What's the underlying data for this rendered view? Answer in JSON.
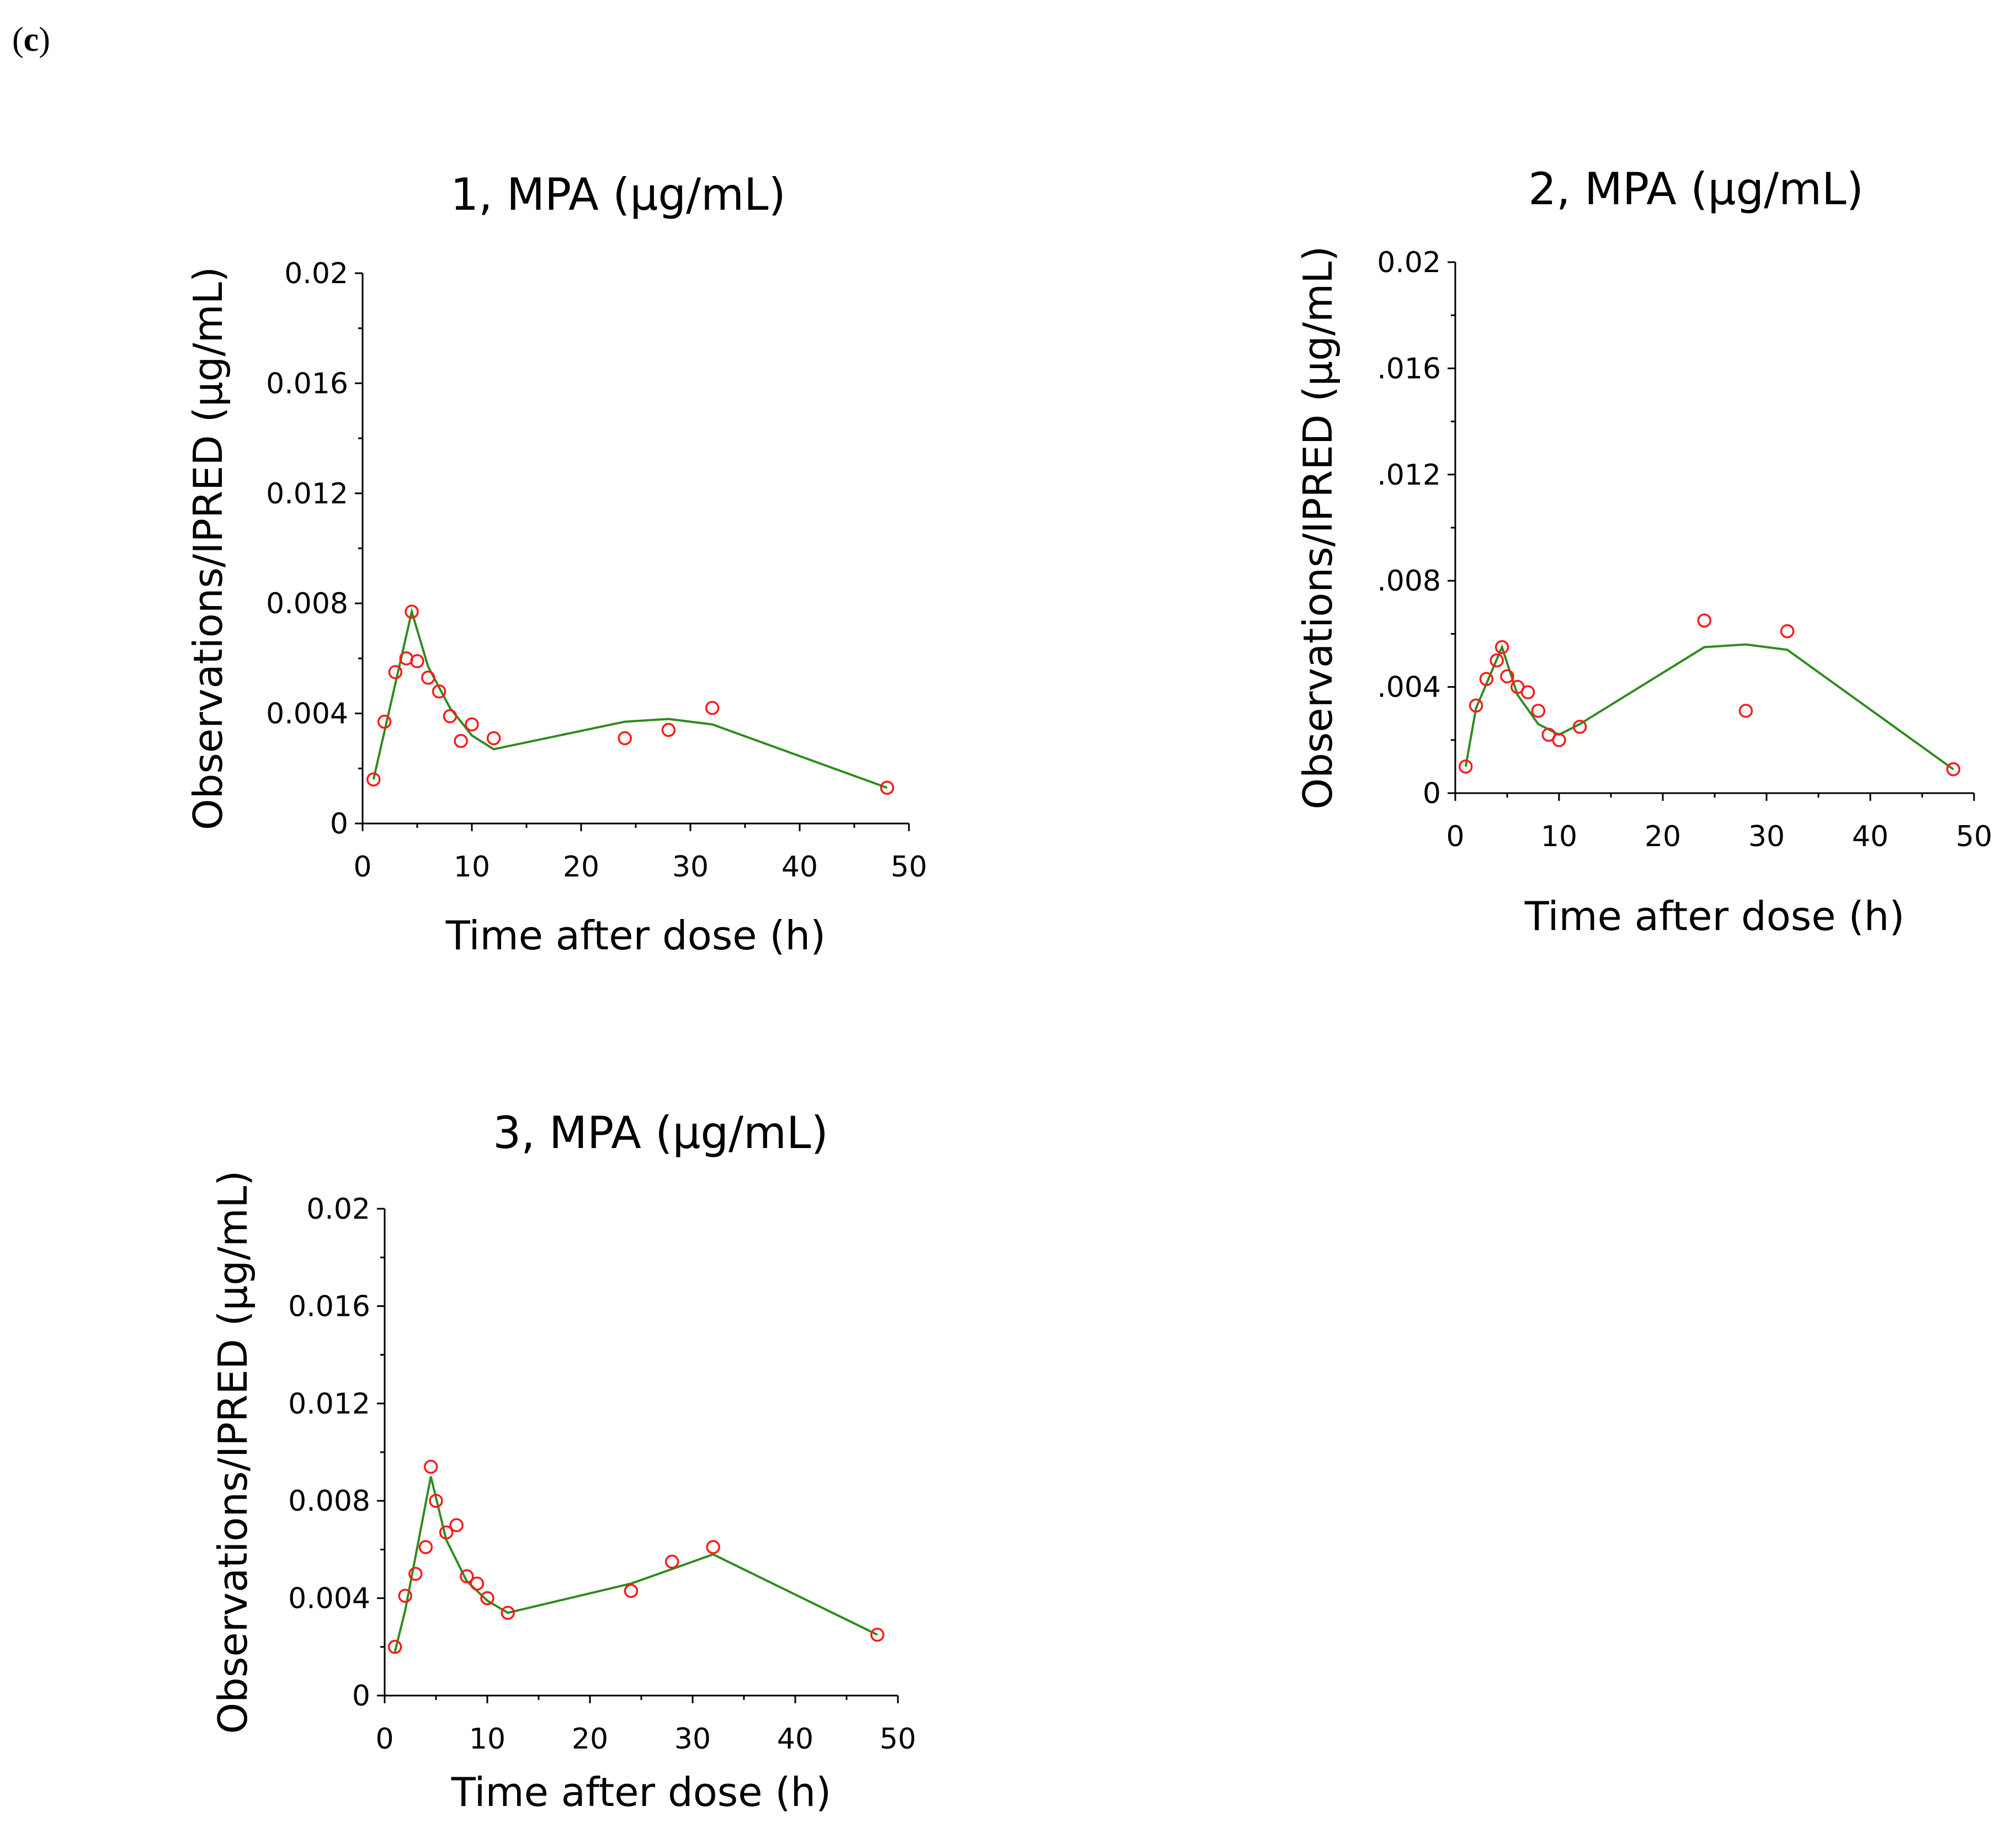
{
  "panel_label": {
    "open": "(",
    "letter": "c",
    "close": ")"
  },
  "colors": {
    "observations": "#ff1a1a",
    "ipred": "#2e8b1e",
    "axes": "#000000"
  },
  "chart_data": [
    {
      "type": "scatter",
      "title": "1, MPA (µg/mL)",
      "xlabel": "Time after dose (h)",
      "ylabel": "Observations/IPRED (µg/mL)",
      "xlim": [
        0,
        50
      ],
      "ylim": [
        0,
        0.02
      ],
      "x_ticks": [
        "0",
        "10",
        "20",
        "30",
        "40",
        "50"
      ],
      "y_ticks": [
        "0",
        "0.004",
        "0.008",
        "0.012",
        "0.016",
        "0.02"
      ],
      "grid": false,
      "series": [
        {
          "kind": "line",
          "x": [
            1,
            4.5,
            6,
            8,
            10,
            12,
            24,
            28,
            32,
            48
          ],
          "y": [
            0.0016,
            0.0077,
            0.0057,
            0.0042,
            0.0032,
            0.0027,
            0.0037,
            0.0038,
            0.0036,
            0.0013
          ]
        },
        {
          "kind": "points",
          "x": [
            1,
            2,
            3,
            4,
            4.5,
            5,
            6,
            7,
            8,
            9,
            10,
            12,
            24,
            28,
            32,
            48
          ],
          "y": [
            0.0016,
            0.0037,
            0.0055,
            0.006,
            0.0077,
            0.0059,
            0.0053,
            0.0048,
            0.0039,
            0.003,
            0.0036,
            0.0031,
            0.0031,
            0.0034,
            0.0042,
            0.0013
          ]
        }
      ]
    },
    {
      "type": "scatter",
      "title": "2, MPA (µg/mL)",
      "xlabel": "Time after dose (h)",
      "ylabel": "Observations/IPRED (µg/mL)",
      "xlim": [
        0,
        50
      ],
      "ylim": [
        0,
        0.02
      ],
      "x_ticks": [
        "0",
        "10",
        "20",
        "30",
        "40",
        "50"
      ],
      "y_ticks": [
        "0",
        ".004",
        ".008",
        ".012",
        ".016",
        "0.02"
      ],
      "grid": false,
      "series": [
        {
          "kind": "line",
          "x": [
            1,
            2,
            4.5,
            6,
            8,
            10,
            12,
            24,
            28,
            32,
            48
          ],
          "y": [
            0.001,
            0.0032,
            0.0055,
            0.0037,
            0.0026,
            0.0022,
            0.0026,
            0.0055,
            0.0056,
            0.0054,
            0.0009
          ]
        },
        {
          "kind": "points",
          "x": [
            1,
            2,
            3,
            4,
            4.5,
            5,
            6,
            7,
            8,
            9,
            10,
            12,
            24,
            28,
            32,
            48
          ],
          "y": [
            0.001,
            0.0033,
            0.0043,
            0.005,
            0.0055,
            0.0044,
            0.004,
            0.0038,
            0.0031,
            0.0022,
            0.002,
            0.0025,
            0.0065,
            0.0031,
            0.0061,
            0.0009
          ]
        }
      ]
    },
    {
      "type": "scatter",
      "title": "3, MPA (µg/mL)",
      "xlabel": "Time after dose (h)",
      "ylabel": "Observations/IPRED (µg/mL)",
      "xlim": [
        0,
        50
      ],
      "ylim": [
        0,
        0.02
      ],
      "x_ticks": [
        "0",
        "10",
        "20",
        "30",
        "40",
        "50"
      ],
      "y_ticks": [
        "0",
        "0.004",
        "0.008",
        "0.012",
        "0.016",
        "0.02"
      ],
      "grid": false,
      "series": [
        {
          "kind": "line",
          "x": [
            1,
            2,
            4.5,
            6,
            8,
            10,
            12,
            24,
            28,
            32,
            48
          ],
          "y": [
            0.0018,
            0.0035,
            0.009,
            0.0064,
            0.0047,
            0.0039,
            0.0034,
            0.0046,
            0.0052,
            0.0058,
            0.0025
          ]
        },
        {
          "kind": "points",
          "x": [
            1,
            2,
            3,
            4,
            4.5,
            5,
            6,
            7,
            8,
            9,
            10,
            12,
            24,
            28,
            32,
            48
          ],
          "y": [
            0.002,
            0.0041,
            0.005,
            0.0061,
            0.0094,
            0.008,
            0.0067,
            0.007,
            0.0049,
            0.0046,
            0.004,
            0.0034,
            0.0043,
            0.0055,
            0.0061,
            0.0025
          ]
        }
      ]
    }
  ]
}
